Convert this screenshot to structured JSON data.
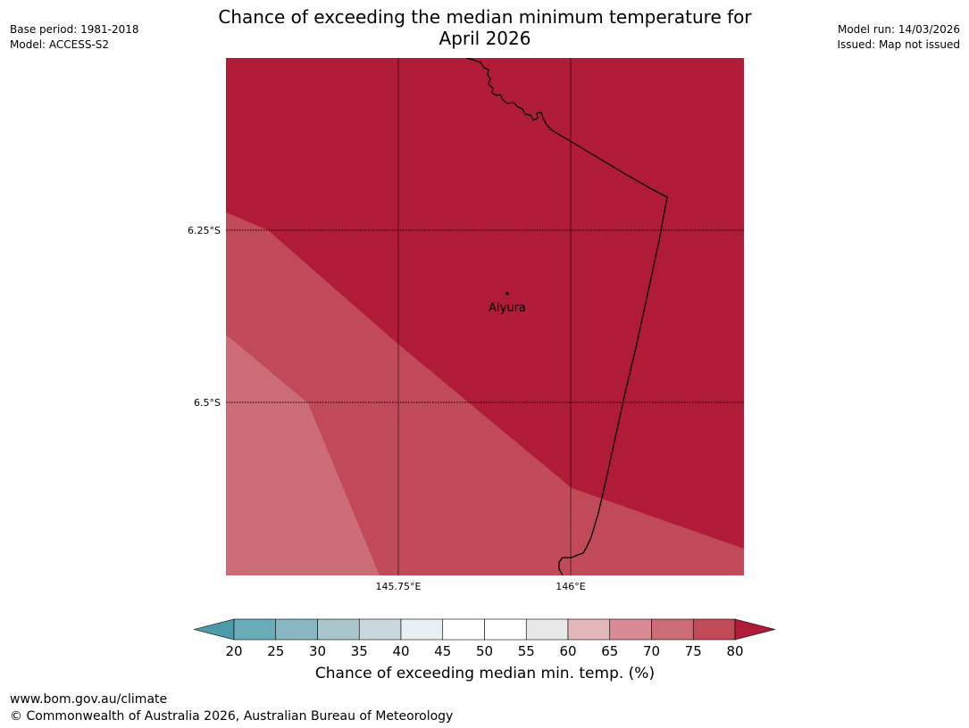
{
  "header": {
    "title_line1": "Chance of exceeding the median minimum temperature for",
    "title_line2": "April 2026",
    "base_period": "Base period: 1981-2018",
    "model": "Model: ACCESS-S2",
    "model_run": "Model run: 14/03/2026",
    "issued": "Issued: Map not issued"
  },
  "map": {
    "latitude_labels": [
      "6.25°S",
      "6.5°S"
    ],
    "longitude_labels": [
      "145.75°E",
      "146°E"
    ],
    "place": {
      "name": "Aiyura"
    },
    "region_colors": {
      "80_plus": "#b01c38",
      "75_80": "#c04a58",
      "70_75": "#cb6c76"
    }
  },
  "colorbar": {
    "label": "Chance of exceeding median min. temp. (%)",
    "ticks": [
      "20",
      "25",
      "30",
      "35",
      "40",
      "45",
      "50",
      "55",
      "60",
      "65",
      "70",
      "75",
      "80"
    ],
    "under_color": "#4c9aaa",
    "over_color": "#b01c38",
    "bin_colors": [
      "#6aabb9",
      "#89b6c3",
      "#a9c6cd",
      "#c9d8dc",
      "#e9f0f1",
      "#ffffff",
      "#ffffff",
      "#e8e8e8",
      "#e3b8bd",
      "#d88b95",
      "#cb6c76",
      "#c04a58"
    ]
  },
  "footer": {
    "website": "www.bom.gov.au/climate",
    "copyright": "© Commonwealth of Australia 2026, Australian Bureau of Meteorology"
  }
}
